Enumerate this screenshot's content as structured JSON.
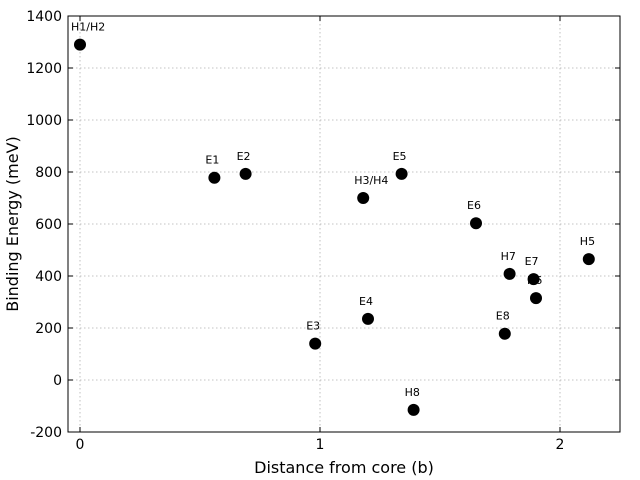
{
  "chart_data": {
    "type": "scatter",
    "title": "",
    "xlabel": "Distance from core (b)",
    "ylabel": "Binding Energy (meV)",
    "xlim": [
      -0.05,
      2.25
    ],
    "ylim": [
      -200,
      1400
    ],
    "xticks": [
      0,
      1,
      2
    ],
    "yticks": [
      -200,
      0,
      200,
      400,
      600,
      800,
      1000,
      1200,
      1400
    ],
    "grid": true,
    "marker_color": "#000000",
    "points": [
      {
        "label": "H1/H2",
        "x": 0.0,
        "y": 1290
      },
      {
        "label": "E1",
        "x": 0.56,
        "y": 778
      },
      {
        "label": "E2",
        "x": 0.69,
        "y": 793
      },
      {
        "label": "E3",
        "x": 0.98,
        "y": 140
      },
      {
        "label": "H3/H4",
        "x": 1.18,
        "y": 700
      },
      {
        "label": "E4",
        "x": 1.2,
        "y": 235
      },
      {
        "label": "E5",
        "x": 1.34,
        "y": 793
      },
      {
        "label": "H8",
        "x": 1.39,
        "y": -115
      },
      {
        "label": "E6",
        "x": 1.65,
        "y": 603
      },
      {
        "label": "E8",
        "x": 1.77,
        "y": 178
      },
      {
        "label": "H7",
        "x": 1.79,
        "y": 408
      },
      {
        "label": "E7",
        "x": 1.89,
        "y": 388
      },
      {
        "label": "H6",
        "x": 1.9,
        "y": 315
      },
      {
        "label": "H5",
        "x": 2.12,
        "y": 465
      }
    ]
  }
}
